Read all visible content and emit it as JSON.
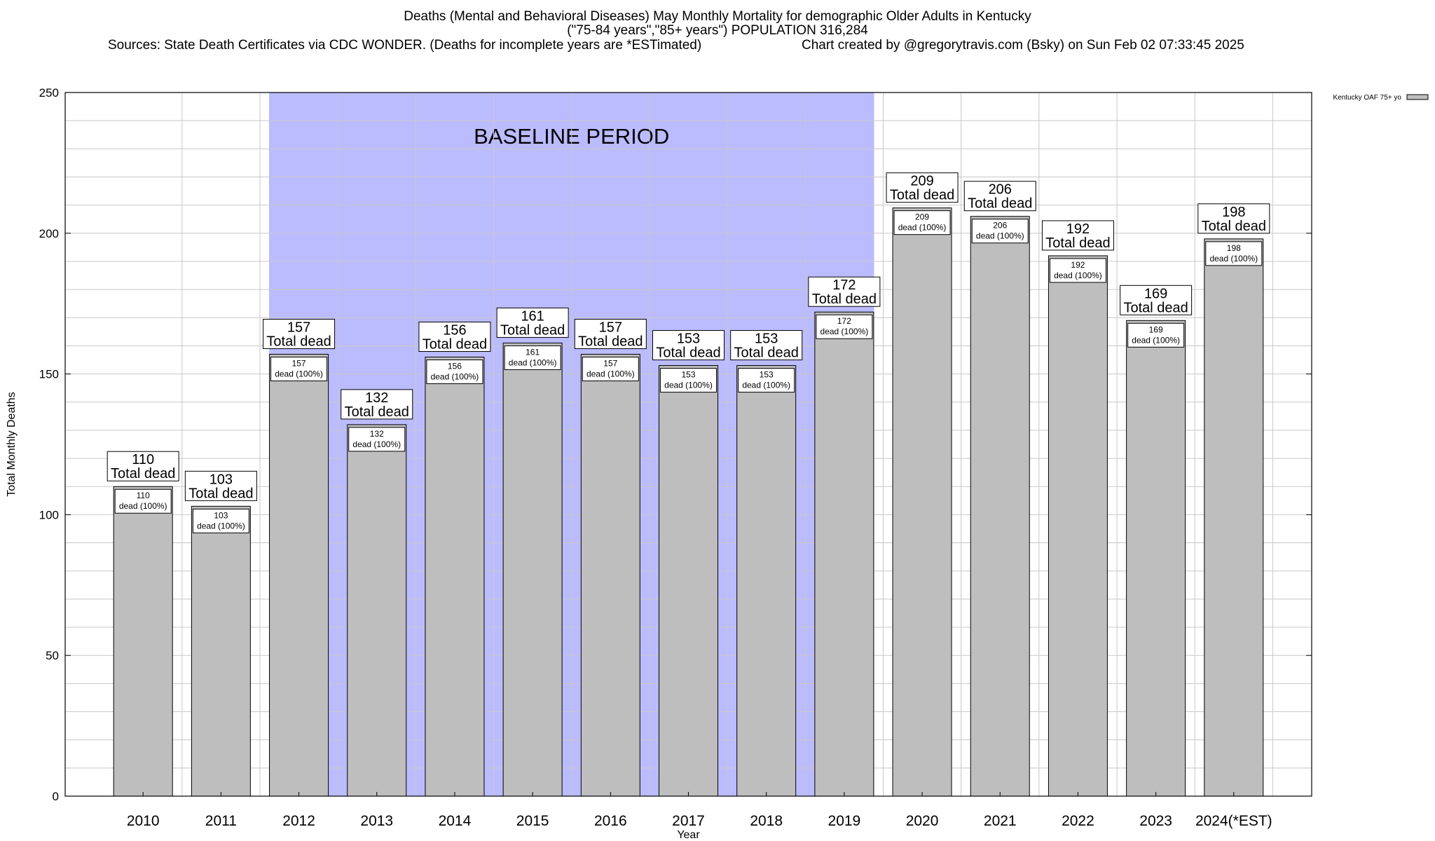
{
  "header": {
    "title_line1": "Deaths (Mental and Behavioral Diseases) May Monthly Mortality for demographic Older Adults in Kentucky",
    "title_line2": "(\"75-84 years\",\"85+ years\") POPULATION 316,284",
    "sources": "Sources: State Death Certificates via CDC WONDER. (Deaths for incomplete years are *ESTimated)",
    "credit": "Chart created by @gregorytravis.com (Bsky) on Sun Feb 02 07:33:45 2025"
  },
  "chart_data": {
    "type": "bar",
    "categories": [
      "2010",
      "2011",
      "2012",
      "2013",
      "2014",
      "2015",
      "2016",
      "2017",
      "2018",
      "2019",
      "2020",
      "2021",
      "2022",
      "2023",
      "2024(*EST)"
    ],
    "series": [
      {
        "name": "Kentucky OAF 75+ yo",
        "values": [
          110,
          103,
          157,
          132,
          156,
          161,
          157,
          153,
          153,
          172,
          209,
          206,
          192,
          169,
          198
        ]
      }
    ],
    "xlabel": "Year",
    "ylabel": "Total Monthly Deaths",
    "ylim": [
      0,
      250
    ],
    "yticks": [
      0,
      50,
      100,
      150,
      200,
      250
    ],
    "grid": true,
    "legend": "top-right",
    "bar_label_total_suffix": "Total dead",
    "bar_label_inner_suffix": "dead (100%)",
    "baseline_band": {
      "label": "BASELINE PERIOD",
      "from": "2012",
      "to": "2019"
    },
    "colors": {
      "bar_fill": "#bebebe",
      "bar_stroke": "#000000",
      "baseline_fill": "#bbbbff",
      "grid": "#c8c8c8"
    }
  }
}
